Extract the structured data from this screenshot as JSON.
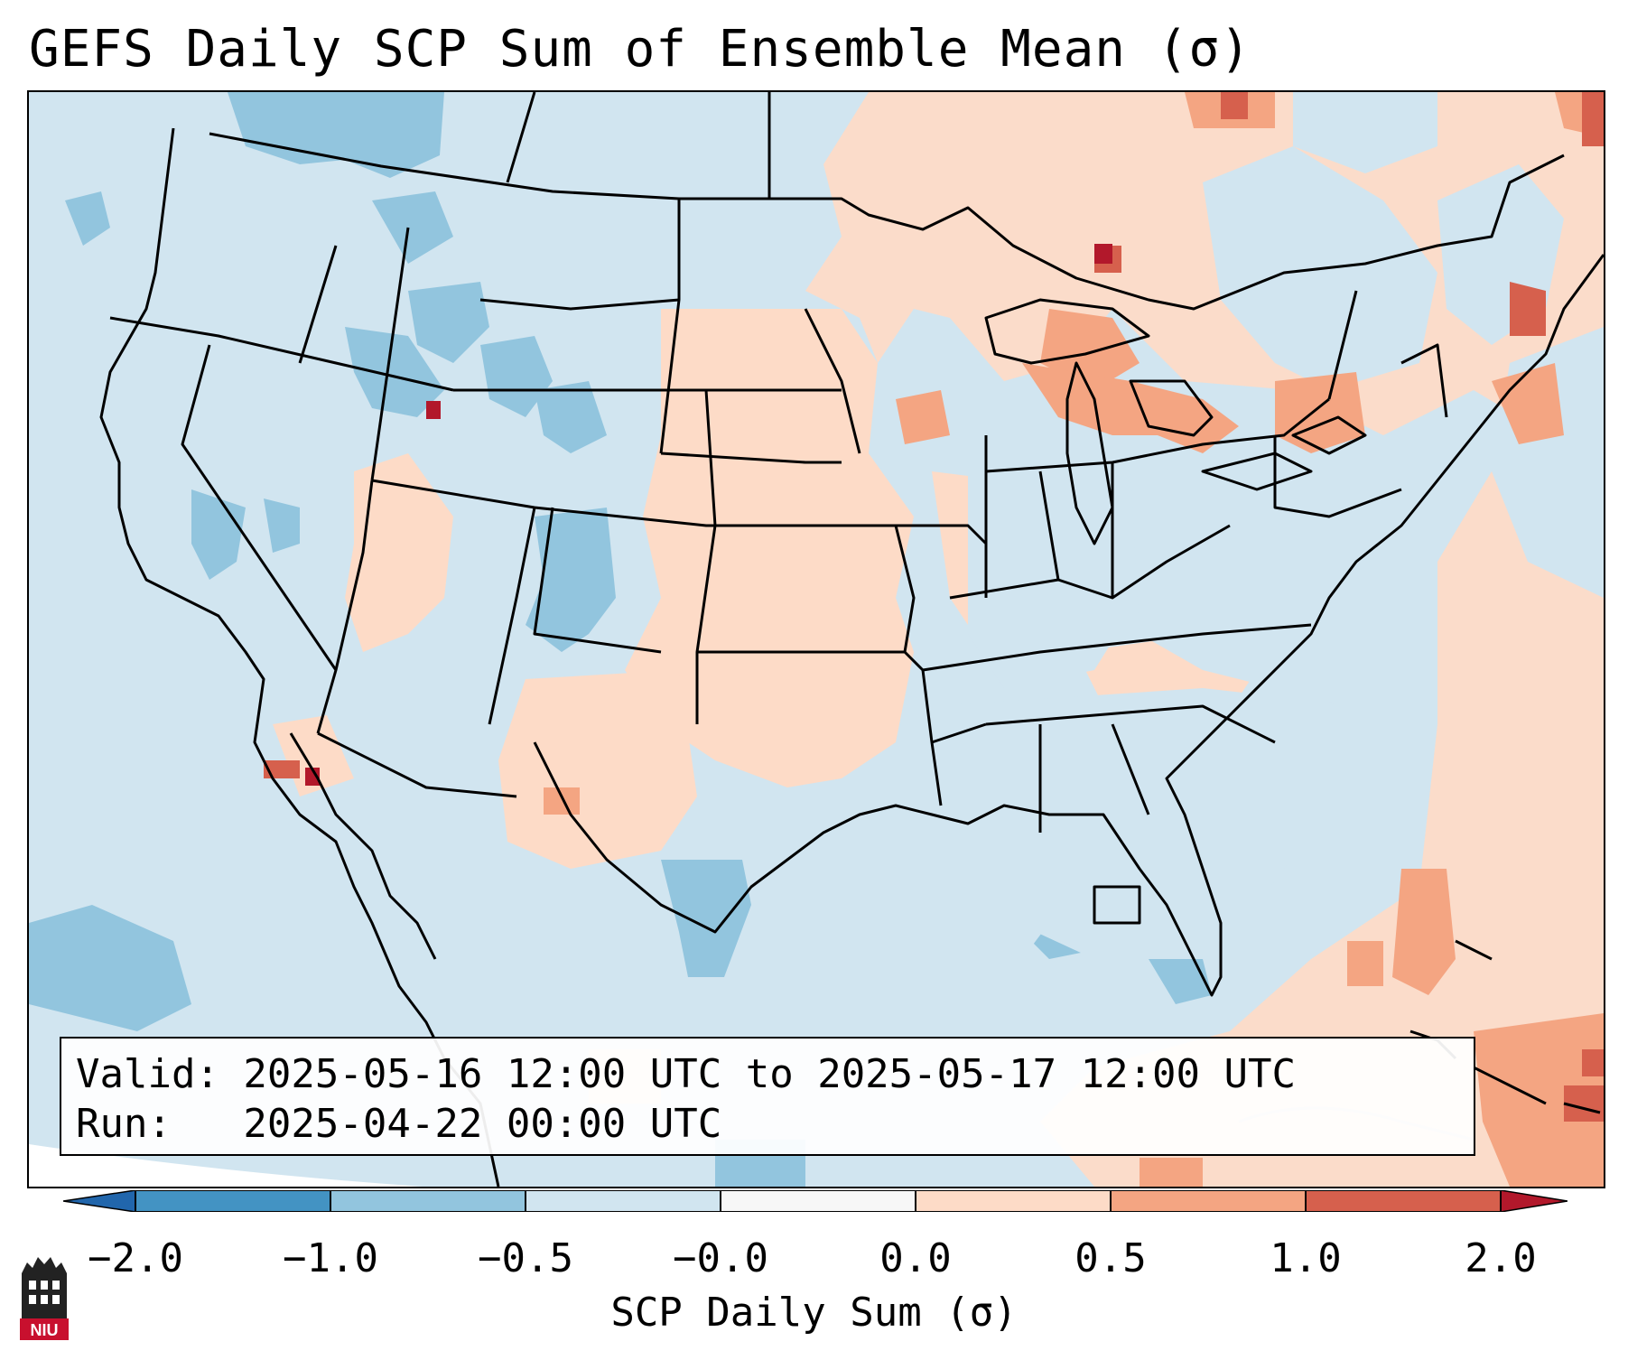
{
  "title": "GEFS Daily SCP Sum of Ensemble Mean (σ)",
  "info": {
    "valid_line": "Valid: 2025-05-16 12:00 UTC to 2025-05-17 12:00 UTC",
    "run_line": "Run:   2025-04-22 00:00 UTC"
  },
  "colorbar": {
    "label": "SCP Daily Sum (σ)",
    "ticks": [
      "−2.0",
      "−1.0",
      "−0.5",
      "−0.0",
      "0.0",
      "0.5",
      "1.0",
      "2.0"
    ],
    "colors": {
      "under": "#2166ac",
      "bin_m2_m1": "#4393c3",
      "bin_m1_m05": "#92c5de",
      "bin_m05_m0": "#d1e5f0",
      "bin_m0_0": "#f7f7f7",
      "bin_0_05": "#fddbc7",
      "bin_05_1": "#f4a582",
      "bin_1_2": "#d6604d",
      "over": "#b2182b"
    }
  },
  "logo": {
    "name": "niu-logo",
    "text": "NIU"
  }
}
